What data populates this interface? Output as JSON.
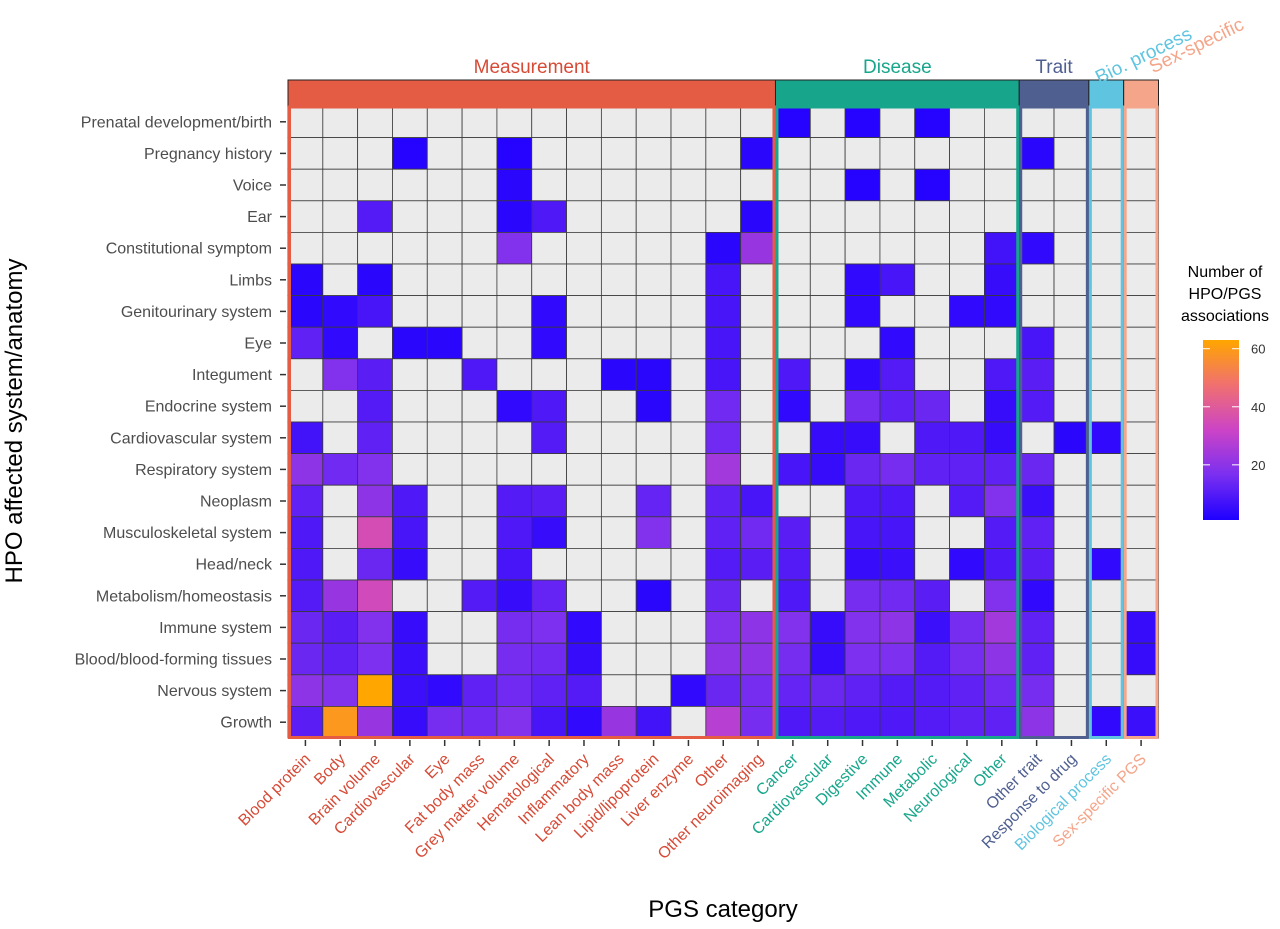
{
  "chart_data": {
    "type": "heatmap",
    "xlabel": "PGS category",
    "ylabel": "HPO affected system/anatomy",
    "legend": {
      "title_lines": [
        "Number of",
        "HPO/PGS",
        "associations"
      ],
      "ticks": [
        20,
        40,
        60
      ],
      "range": [
        1,
        63
      ],
      "colors": [
        "#1f00ff",
        "#7a2ff0",
        "#cc44c6",
        "#f07070",
        "#ffa600"
      ],
      "missing_color": "#ebebeb",
      "position": "right"
    },
    "groups": [
      {
        "name": "Measurement",
        "color": "#e55c45",
        "text_color": "#d64a36",
        "span": [
          0,
          13
        ]
      },
      {
        "name": "Disease",
        "color": "#17a68c",
        "text_color": "#17a68c",
        "span": [
          14,
          20
        ]
      },
      {
        "name": "Trait",
        "color": "#4e5f90",
        "text_color": "#4e5f90",
        "span": [
          21,
          22
        ]
      },
      {
        "name": "Bio. process",
        "color": "#5fc4e0",
        "text_color": "#5fc4e0",
        "span": [
          23,
          23
        ]
      },
      {
        "name": "Sex-specific",
        "color": "#f4a58a",
        "text_color": "#f4a58a",
        "span": [
          24,
          24
        ]
      }
    ],
    "columns": [
      {
        "label": "Blood protein",
        "group": "Measurement"
      },
      {
        "label": "Body",
        "group": "Measurement"
      },
      {
        "label": "Brain volume",
        "group": "Measurement"
      },
      {
        "label": "Cardiovascular",
        "group": "Measurement"
      },
      {
        "label": "Eye",
        "group": "Measurement"
      },
      {
        "label": "Fat body mass",
        "group": "Measurement"
      },
      {
        "label": "Grey matter volume",
        "group": "Measurement"
      },
      {
        "label": "Hematological",
        "group": "Measurement"
      },
      {
        "label": "Inflammatory",
        "group": "Measurement"
      },
      {
        "label": "Lean body mass",
        "group": "Measurement"
      },
      {
        "label": "Lipid/lipoprotein",
        "group": "Measurement"
      },
      {
        "label": "Liver enzyme",
        "group": "Measurement"
      },
      {
        "label": "Other",
        "group": "Measurement"
      },
      {
        "label": "Other neuroimaging",
        "group": "Measurement"
      },
      {
        "label": "Cancer",
        "group": "Disease"
      },
      {
        "label": "Cardiovascular",
        "group": "Disease"
      },
      {
        "label": "Digestive",
        "group": "Disease"
      },
      {
        "label": "Immune",
        "group": "Disease"
      },
      {
        "label": "Metabolic",
        "group": "Disease"
      },
      {
        "label": "Neurological",
        "group": "Disease"
      },
      {
        "label": "Other",
        "group": "Disease"
      },
      {
        "label": "Other trait",
        "group": "Trait"
      },
      {
        "label": "Response to drug",
        "group": "Trait"
      },
      {
        "label": "Biological process",
        "group": "Bio. process"
      },
      {
        "label": "Sex-specific PGS",
        "group": "Sex-specific"
      }
    ],
    "rows": [
      "Prenatal development/birth",
      "Pregnancy history",
      "Voice",
      "Ear",
      "Constitutional symptom",
      "Limbs",
      "Genitourinary system",
      "Eye",
      "Integument",
      "Endocrine system",
      "Cardiovascular system",
      "Respiratory system",
      "Neoplasm",
      "Musculoskeletal system",
      "Head/neck",
      "Metabolism/homeostasis",
      "Immune system",
      "Blood/blood-forming tissues",
      "Nervous system",
      "Growth"
    ],
    "values": [
      [
        null,
        null,
        null,
        null,
        null,
        null,
        null,
        null,
        null,
        null,
        null,
        null,
        null,
        null,
        2,
        null,
        2,
        null,
        2,
        null,
        null,
        null,
        null,
        null,
        null
      ],
      [
        null,
        null,
        null,
        2,
        null,
        null,
        2,
        null,
        null,
        null,
        null,
        null,
        null,
        3,
        null,
        null,
        null,
        null,
        null,
        null,
        null,
        3,
        null,
        null,
        null
      ],
      [
        null,
        null,
        null,
        null,
        null,
        null,
        3,
        null,
        null,
        null,
        null,
        null,
        null,
        null,
        null,
        null,
        2,
        null,
        2,
        null,
        null,
        null,
        null,
        null,
        null
      ],
      [
        null,
        null,
        10,
        null,
        null,
        null,
        3,
        9,
        null,
        null,
        null,
        null,
        null,
        3,
        null,
        null,
        null,
        null,
        null,
        null,
        null,
        null,
        null,
        null,
        null
      ],
      [
        null,
        null,
        null,
        null,
        null,
        null,
        18,
        null,
        null,
        null,
        null,
        null,
        3,
        22,
        null,
        null,
        null,
        null,
        null,
        null,
        7,
        4,
        null,
        null,
        null
      ],
      [
        3,
        null,
        3,
        null,
        null,
        null,
        null,
        null,
        null,
        null,
        null,
        null,
        8,
        null,
        null,
        null,
        4,
        8,
        null,
        null,
        5,
        null,
        null,
        null,
        null
      ],
      [
        3,
        4,
        8,
        null,
        null,
        null,
        null,
        4,
        null,
        null,
        null,
        null,
        8,
        null,
        null,
        null,
        4,
        null,
        null,
        4,
        4,
        null,
        null,
        null,
        null
      ],
      [
        12,
        4,
        null,
        3,
        3,
        null,
        null,
        4,
        null,
        null,
        null,
        null,
        8,
        null,
        null,
        null,
        null,
        4,
        null,
        null,
        null,
        8,
        null,
        null,
        null
      ],
      [
        null,
        18,
        11,
        null,
        null,
        9,
        null,
        null,
        null,
        3,
        3,
        null,
        8,
        null,
        9,
        null,
        4,
        10,
        null,
        null,
        9,
        11,
        null,
        null,
        null
      ],
      [
        null,
        null,
        10,
        null,
        null,
        null,
        4,
        9,
        null,
        null,
        3,
        null,
        15,
        null,
        4,
        null,
        16,
        12,
        14,
        null,
        5,
        10,
        null,
        null,
        null
      ],
      [
        7,
        null,
        12,
        null,
        null,
        null,
        null,
        10,
        null,
        null,
        null,
        null,
        15,
        null,
        null,
        5,
        5,
        null,
        9,
        9,
        5,
        null,
        3,
        4,
        null
      ],
      [
        20,
        15,
        18,
        null,
        null,
        null,
        null,
        null,
        null,
        null,
        null,
        null,
        24,
        null,
        8,
        5,
        14,
        16,
        12,
        12,
        12,
        14,
        null,
        null,
        null
      ],
      [
        12,
        null,
        20,
        9,
        null,
        null,
        10,
        11,
        null,
        null,
        13,
        null,
        12,
        8,
        null,
        null,
        9,
        9,
        null,
        10,
        18,
        6,
        null,
        null,
        null
      ],
      [
        9,
        null,
        35,
        8,
        null,
        null,
        9,
        5,
        null,
        null,
        18,
        null,
        12,
        15,
        11,
        null,
        8,
        8,
        null,
        null,
        10,
        12,
        null,
        null,
        null
      ],
      [
        9,
        null,
        14,
        5,
        null,
        null,
        8,
        null,
        null,
        null,
        null,
        null,
        10,
        11,
        10,
        null,
        5,
        6,
        null,
        4,
        9,
        11,
        null,
        4,
        null
      ],
      [
        10,
        22,
        34,
        null,
        null,
        10,
        5,
        13,
        null,
        null,
        3,
        null,
        14,
        null,
        9,
        null,
        16,
        15,
        11,
        null,
        18,
        4,
        null,
        null,
        null
      ],
      [
        14,
        11,
        18,
        5,
        null,
        null,
        16,
        17,
        4,
        null,
        null,
        null,
        18,
        20,
        18,
        5,
        18,
        20,
        6,
        16,
        24,
        12,
        null,
        null,
        5
      ],
      [
        14,
        12,
        17,
        6,
        null,
        null,
        16,
        15,
        5,
        null,
        null,
        null,
        20,
        20,
        16,
        5,
        17,
        17,
        10,
        16,
        20,
        12,
        null,
        null,
        5
      ],
      [
        20,
        18,
        63,
        6,
        4,
        12,
        15,
        12,
        10,
        null,
        null,
        4,
        14,
        16,
        13,
        14,
        12,
        10,
        10,
        12,
        15,
        16,
        null,
        null,
        null
      ],
      [
        11,
        59,
        22,
        5,
        16,
        15,
        18,
        8,
        4,
        22,
        7,
        null,
        28,
        16,
        9,
        10,
        9,
        9,
        10,
        12,
        12,
        20,
        null,
        4,
        6
      ]
    ]
  }
}
